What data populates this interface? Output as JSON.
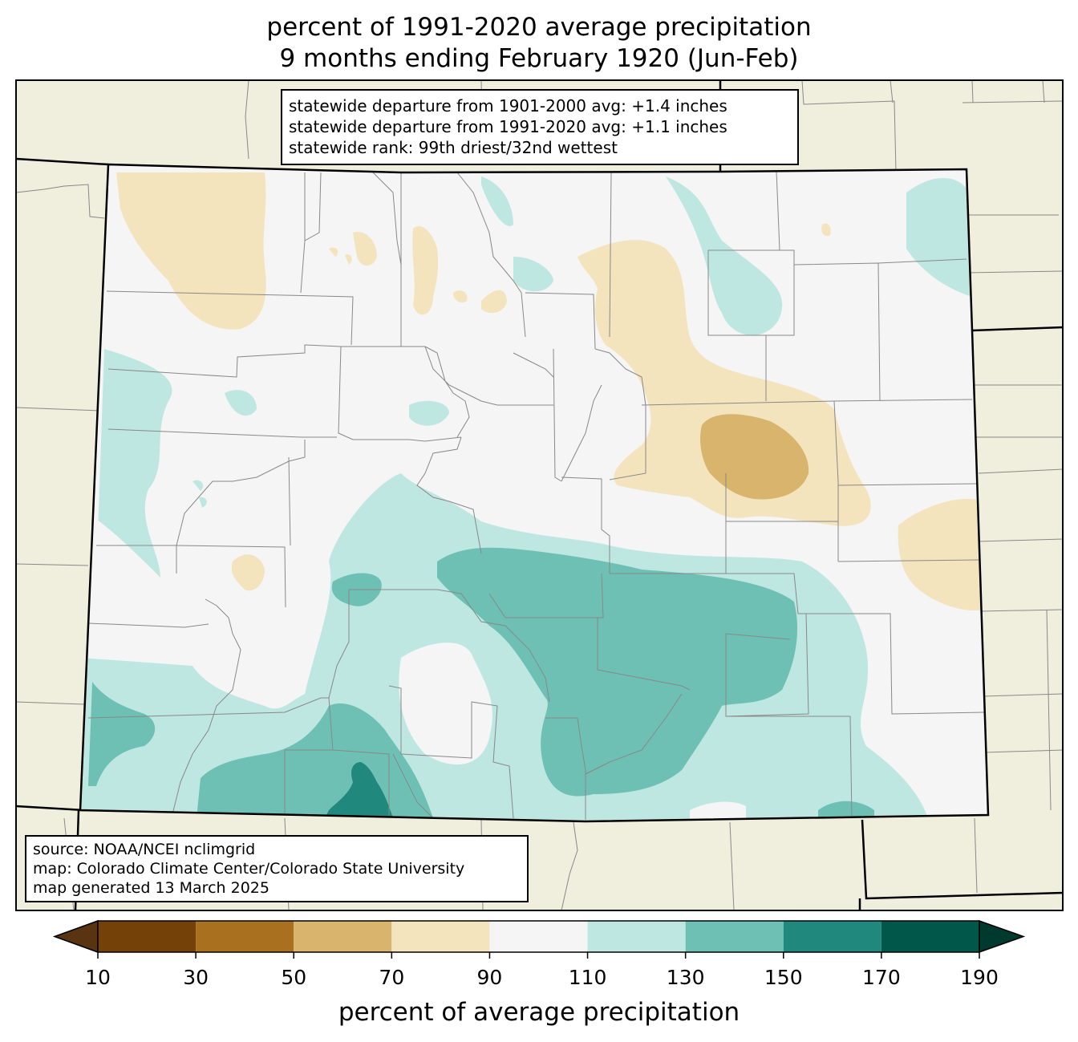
{
  "title": {
    "line1": "percent of 1991-2020 average precipitation",
    "line2": "9 months ending February 1920 (Jun-Feb)"
  },
  "stats_box": {
    "line1": "statewide departure from 1901-2000 avg: +1.4 inches",
    "line2": "statewide departure from 1991-2020 avg: +1.1 inches",
    "line3": "statewide rank: 99th driest/32nd wettest"
  },
  "source_box": {
    "line1": "source: NOAA/NCEI nclimgrid",
    "line2": "map: Colorado Climate Center/Colorado State University",
    "line3": "map generated 13 March 2025"
  },
  "colorbar": {
    "title": "percent of average precipitation",
    "ticks": [
      "10",
      "30",
      "50",
      "70",
      "90",
      "110",
      "130",
      "150",
      "170",
      "190"
    ],
    "colors": [
      "#744109",
      "#a9701f",
      "#d8b46c",
      "#f3e4bd",
      "#f4f5f4",
      "#bfe7e2",
      "#6ec0b4",
      "#21887e",
      "#00574a"
    ],
    "under_color": "#5a3310",
    "over_color": "#003a2e"
  },
  "map_colors": {
    "outside": "#f0eedc",
    "state_fill": "#f4f5f4"
  }
}
